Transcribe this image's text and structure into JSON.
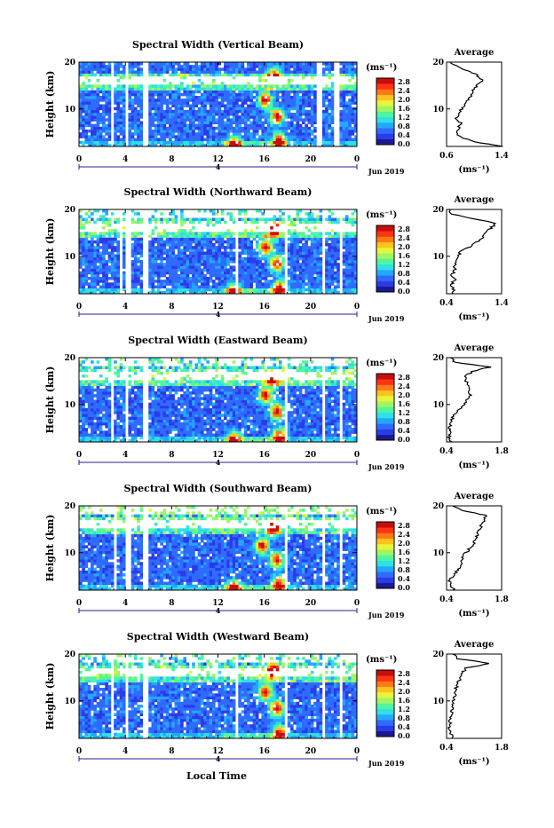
{
  "figure": {
    "xlabel": "Local Time",
    "date_label": "Jun 2019",
    "date_tick_label": "4",
    "colorbar_unit": "(ms⁻¹)",
    "colorbar_ticks": [
      "0.0",
      "0.4",
      "0.8",
      "1.2",
      "1.6",
      "2.0",
      "2.4",
      "2.8"
    ],
    "colormap": [
      "#1a1a8f",
      "#2b3be8",
      "#2f6bff",
      "#24a7ff",
      "#2fe0e4",
      "#50f5a0",
      "#9ff565",
      "#e6f53a",
      "#ffc21f",
      "#ff7a17",
      "#ff3412",
      "#c80d0d"
    ],
    "avg_title": "Average",
    "avg_unit": "(ms⁻¹)"
  },
  "chart_data": [
    {
      "type": "heatmap",
      "title": "Spectral Width (Vertical Beam)",
      "ylabel": "Height (km)",
      "x_ticks": [
        "0",
        "4",
        "8",
        "12",
        "16",
        "20",
        "0"
      ],
      "y_ticks": [
        "20",
        "10"
      ],
      "xlim": [
        0,
        24
      ],
      "ylim": [
        2,
        20
      ],
      "zlim": [
        0.0,
        2.8
      ],
      "data_gaps_hours": [
        [
          2.8,
          3.1
        ],
        [
          3.9,
          4.2
        ],
        [
          5.6,
          5.9
        ],
        [
          20.6,
          21.0
        ],
        [
          22.1,
          22.4
        ]
      ],
      "hot_spots": [
        [
          13.4,
          2.5
        ],
        [
          16.1,
          12.0
        ],
        [
          16.8,
          17.0
        ],
        [
          17.1,
          8.5
        ],
        [
          17.3,
          3.2
        ]
      ],
      "average_profile": {
        "type": "line",
        "title": "Average",
        "xlabel": "(ms⁻¹)",
        "x_ticks": [
          "0.6",
          "1.4"
        ],
        "xlim": [
          0.6,
          1.4
        ],
        "ylim": [
          2,
          20
        ],
        "y_ticks": [
          "20",
          "10"
        ],
        "height_km": [
          2,
          3,
          4,
          5,
          6,
          7,
          8,
          9,
          10,
          11,
          12,
          13,
          14,
          15,
          16,
          17,
          18,
          19,
          20
        ],
        "values": [
          1.4,
          1.0,
          0.8,
          0.75,
          0.78,
          0.8,
          0.74,
          0.78,
          0.82,
          0.86,
          0.92,
          0.96,
          0.98,
          1.04,
          1.12,
          1.06,
          0.95,
          0.75,
          0.66
        ]
      }
    },
    {
      "type": "heatmap",
      "title": "Spectral Width (Northward Beam)",
      "ylabel": "Height (km)",
      "x_ticks": [
        "0",
        "4",
        "8",
        "12",
        "16",
        "20",
        "0"
      ],
      "y_ticks": [
        "20",
        "10"
      ],
      "xlim": [
        0,
        24
      ],
      "ylim": [
        2,
        20
      ],
      "zlim": [
        0.0,
        2.8
      ],
      "data_gaps_hours": [
        [
          3.5,
          3.8
        ],
        [
          4.1,
          4.4
        ],
        [
          5.6,
          5.9
        ],
        [
          13.5,
          13.8
        ],
        [
          17.7,
          18.0
        ],
        [
          20.9,
          21.2
        ],
        [
          22.4,
          22.7
        ]
      ],
      "hot_spots": [
        [
          13.4,
          2.5
        ],
        [
          16.1,
          12.0
        ],
        [
          16.8,
          15.5
        ],
        [
          17.1,
          8.5
        ],
        [
          17.3,
          3.2
        ]
      ],
      "average_profile": {
        "type": "line",
        "title": "Average",
        "xlabel": "(ms⁻¹)",
        "x_ticks": [
          "0.4",
          "1.4"
        ],
        "xlim": [
          0.4,
          1.4
        ],
        "ylim": [
          2,
          20
        ],
        "y_ticks": [
          "20",
          "10"
        ],
        "height_km": [
          2,
          3,
          4,
          5,
          6,
          7,
          8,
          9,
          10,
          11,
          12,
          13,
          14,
          15,
          16,
          17,
          18,
          19,
          20
        ],
        "values": [
          0.52,
          0.52,
          0.48,
          0.55,
          0.5,
          0.55,
          0.54,
          0.58,
          0.6,
          0.66,
          0.82,
          0.95,
          1.05,
          1.12,
          1.2,
          1.3,
          0.9,
          0.5,
          0.45
        ]
      }
    },
    {
      "type": "heatmap",
      "title": "Spectral Width (Eastward Beam)",
      "ylabel": "Height (km)",
      "x_ticks": [
        "0",
        "4",
        "8",
        "12",
        "16",
        "20",
        "0"
      ],
      "y_ticks": [
        "20",
        "10"
      ],
      "xlim": [
        0,
        24
      ],
      "ylim": [
        2,
        20
      ],
      "zlim": [
        0.0,
        2.8
      ],
      "data_gaps_hours": [
        [
          2.8,
          3.1
        ],
        [
          3.9,
          4.2
        ],
        [
          5.6,
          5.9
        ],
        [
          17.7,
          18.0
        ],
        [
          20.9,
          21.2
        ],
        [
          22.4,
          22.7
        ]
      ],
      "hot_spots": [
        [
          13.4,
          2.5
        ],
        [
          16.1,
          12.0
        ],
        [
          16.8,
          15.5
        ],
        [
          17.1,
          8.5
        ],
        [
          17.3,
          3.2
        ]
      ],
      "average_profile": {
        "type": "line",
        "title": "Average",
        "xlabel": "(ms⁻¹)",
        "x_ticks": [
          "0.4",
          "1.8"
        ],
        "xlim": [
          0.4,
          1.8
        ],
        "ylim": [
          2,
          20
        ],
        "y_ticks": [
          "20",
          "10"
        ],
        "height_km": [
          2,
          3,
          4,
          5,
          6,
          7,
          8,
          9,
          10,
          11,
          12,
          13,
          14,
          15,
          16,
          17,
          18,
          19,
          20
        ],
        "values": [
          0.5,
          0.45,
          0.5,
          0.48,
          0.52,
          0.55,
          0.6,
          0.75,
          0.85,
          0.9,
          1.0,
          0.95,
          0.95,
          0.9,
          0.88,
          1.05,
          1.5,
          0.6,
          0.5
        ]
      }
    },
    {
      "type": "heatmap",
      "title": "Spectral Width (Southward Beam)",
      "ylabel": "Height (km)",
      "x_ticks": [
        "0",
        "4",
        "8",
        "12",
        "16",
        "20",
        "0"
      ],
      "y_ticks": [
        "20",
        "10"
      ],
      "xlim": [
        0,
        24
      ],
      "ylim": [
        2,
        20
      ],
      "zlim": [
        0.0,
        2.8
      ],
      "data_gaps_hours": [
        [
          3.0,
          3.3
        ],
        [
          4.1,
          4.4
        ],
        [
          5.6,
          5.9
        ],
        [
          17.7,
          18.0
        ],
        [
          20.9,
          21.2
        ],
        [
          22.4,
          22.7
        ]
      ],
      "hot_spots": [
        [
          13.4,
          2.5
        ],
        [
          15.8,
          11.5
        ],
        [
          16.8,
          15.5
        ],
        [
          17.1,
          8.5
        ],
        [
          17.3,
          3.2
        ]
      ],
      "average_profile": {
        "type": "line",
        "title": "Average",
        "xlabel": "(ms⁻¹)",
        "x_ticks": [
          "0.4",
          "1.8"
        ],
        "xlim": [
          0.4,
          1.8
        ],
        "ylim": [
          2,
          20
        ],
        "y_ticks": [
          "20",
          "10"
        ],
        "height_km": [
          2,
          3,
          4,
          5,
          6,
          7,
          8,
          9,
          10,
          11,
          12,
          13,
          14,
          15,
          16,
          17,
          18,
          19,
          20
        ],
        "values": [
          0.6,
          0.52,
          0.45,
          0.55,
          0.65,
          0.75,
          0.8,
          0.78,
          0.9,
          1.0,
          1.1,
          1.15,
          1.2,
          1.25,
          1.3,
          1.35,
          1.4,
          0.8,
          0.55
        ]
      }
    },
    {
      "type": "heatmap",
      "title": "Spectral Width (Westward Beam)",
      "ylabel": "Height (km)",
      "x_ticks": [
        "0",
        "4",
        "8",
        "12",
        "16",
        "20",
        "0"
      ],
      "y_ticks": [
        "20",
        "10"
      ],
      "xlim": [
        0,
        24
      ],
      "ylim": [
        2,
        20
      ],
      "zlim": [
        0.0,
        2.8
      ],
      "data_gaps_hours": [
        [
          2.8,
          3.1
        ],
        [
          3.9,
          4.2
        ],
        [
          5.6,
          5.9
        ],
        [
          13.5,
          13.8
        ],
        [
          17.7,
          18.0
        ],
        [
          20.9,
          21.2
        ],
        [
          22.4,
          22.7
        ]
      ],
      "hot_spots": [
        [
          16.1,
          12.0
        ],
        [
          16.8,
          16.5
        ],
        [
          17.1,
          8.5
        ],
        [
          17.3,
          3.2
        ]
      ],
      "average_profile": {
        "type": "line",
        "title": "Average",
        "xlabel": "(ms⁻¹)",
        "x_ticks": [
          "0.4",
          "1.8"
        ],
        "xlim": [
          0.4,
          1.8
        ],
        "ylim": [
          2,
          20
        ],
        "y_ticks": [
          "20",
          "10"
        ],
        "height_km": [
          2,
          3,
          4,
          5,
          6,
          7,
          8,
          9,
          10,
          11,
          12,
          13,
          14,
          15,
          16,
          17,
          18,
          19,
          20
        ],
        "values": [
          0.55,
          0.5,
          0.45,
          0.48,
          0.5,
          0.52,
          0.55,
          0.55,
          0.58,
          0.6,
          0.62,
          0.65,
          0.7,
          0.75,
          0.8,
          0.9,
          1.5,
          0.7,
          0.55
        ]
      }
    }
  ]
}
